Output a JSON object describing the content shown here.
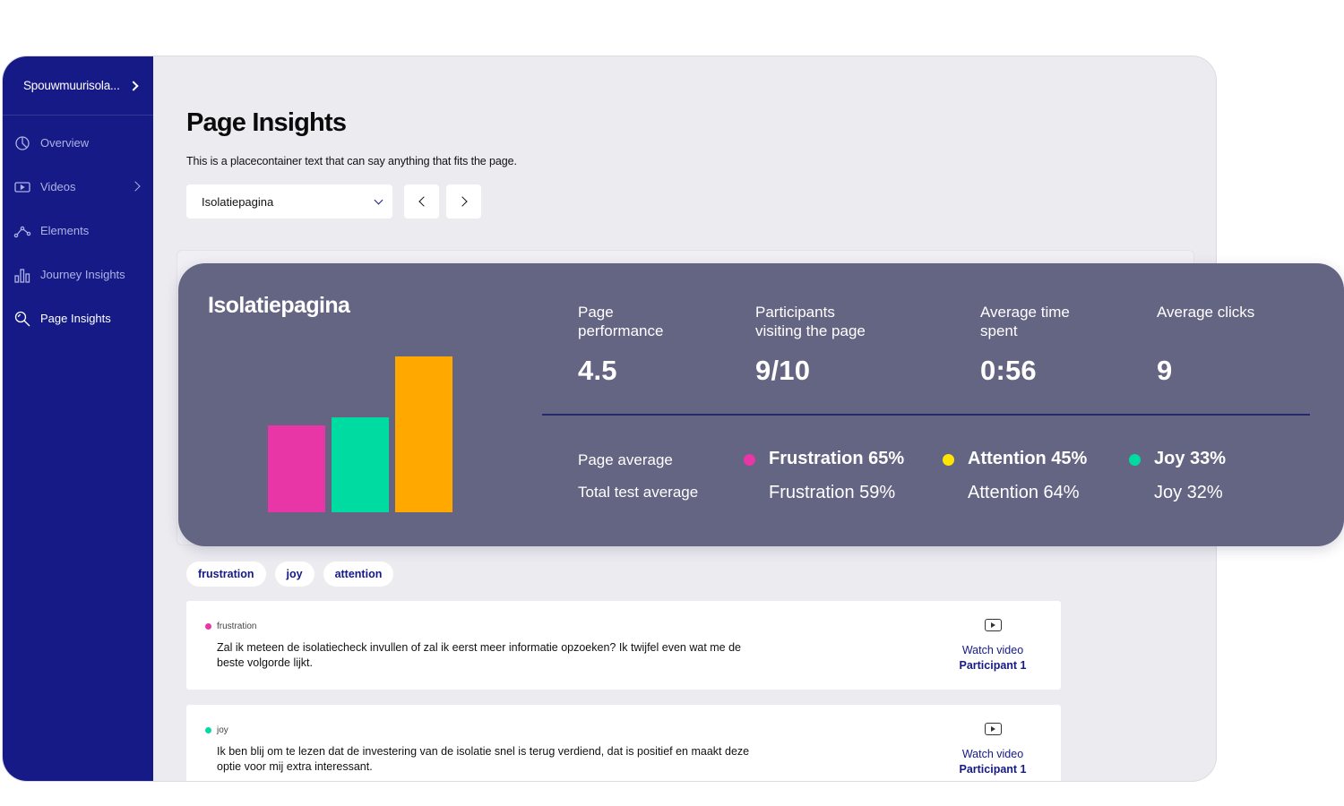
{
  "colors": {
    "sidebar_bg": "#151a86",
    "summary_bg": "#646483",
    "frustration": "#e936a7",
    "attention": "#ffe600",
    "joy": "#00dba2",
    "bar_orange": "#ffa800"
  },
  "sidebar": {
    "project_name": "Spouwmuurisola...",
    "items": [
      {
        "label": "Overview",
        "icon": "pie-chart-icon"
      },
      {
        "label": "Videos",
        "icon": "video-icon"
      },
      {
        "label": "Elements",
        "icon": "nodes-icon"
      },
      {
        "label": "Journey Insights",
        "icon": "bar-chart-icon"
      },
      {
        "label": "Page Insights",
        "icon": "magnifier-icon"
      }
    ]
  },
  "header": {
    "title": "Page Insights",
    "description": "This is a placecontainer text that can say anything that fits the page.",
    "select_value": "Isolatiepagina"
  },
  "summary": {
    "title": "Isolatiepagina",
    "metrics": [
      {
        "label_line1": "Page",
        "label_line2": "performance",
        "value": "4.5"
      },
      {
        "label_line1": "Participants",
        "label_line2": "visiting the page",
        "value": "9/10"
      },
      {
        "label_line1": "Average time",
        "label_line2": "spent",
        "value": "0:56"
      },
      {
        "label_line1": "Average clicks",
        "label_line2": "",
        "value": "9"
      }
    ],
    "page_average_label": "Page average",
    "total_average_label": "Total test average",
    "emotions": [
      {
        "page": "Frustration 65%",
        "total": "Frustration 59%"
      },
      {
        "page": "Attention 45%",
        "total": "Attention 64%"
      },
      {
        "page": "Joy 33%",
        "total": "Joy 32%"
      }
    ]
  },
  "chart_data": {
    "type": "bar",
    "categories": [
      "",
      "",
      ""
    ],
    "values": [
      0.56,
      0.61,
      1.0
    ],
    "colors": [
      "#e936a7",
      "#00dba2",
      "#ffa800"
    ]
  },
  "tags": [
    "frustration",
    "joy",
    "attention"
  ],
  "quotes": [
    {
      "tag": "frustration",
      "text": "Zal ik meteen de isolatiecheck invullen of zal ik eerst meer informatie opzoeken? Ik twijfel even wat me de beste volgorde lijkt.",
      "watch_label": "Watch video",
      "participant": "Participant 1"
    },
    {
      "tag": "joy",
      "text": "Ik ben blij om te lezen dat de investering van de isolatie snel is terug verdiend, dat is positief en maakt deze optie voor mij extra interessant.",
      "watch_label": "Watch video",
      "participant": "Participant 1"
    }
  ]
}
